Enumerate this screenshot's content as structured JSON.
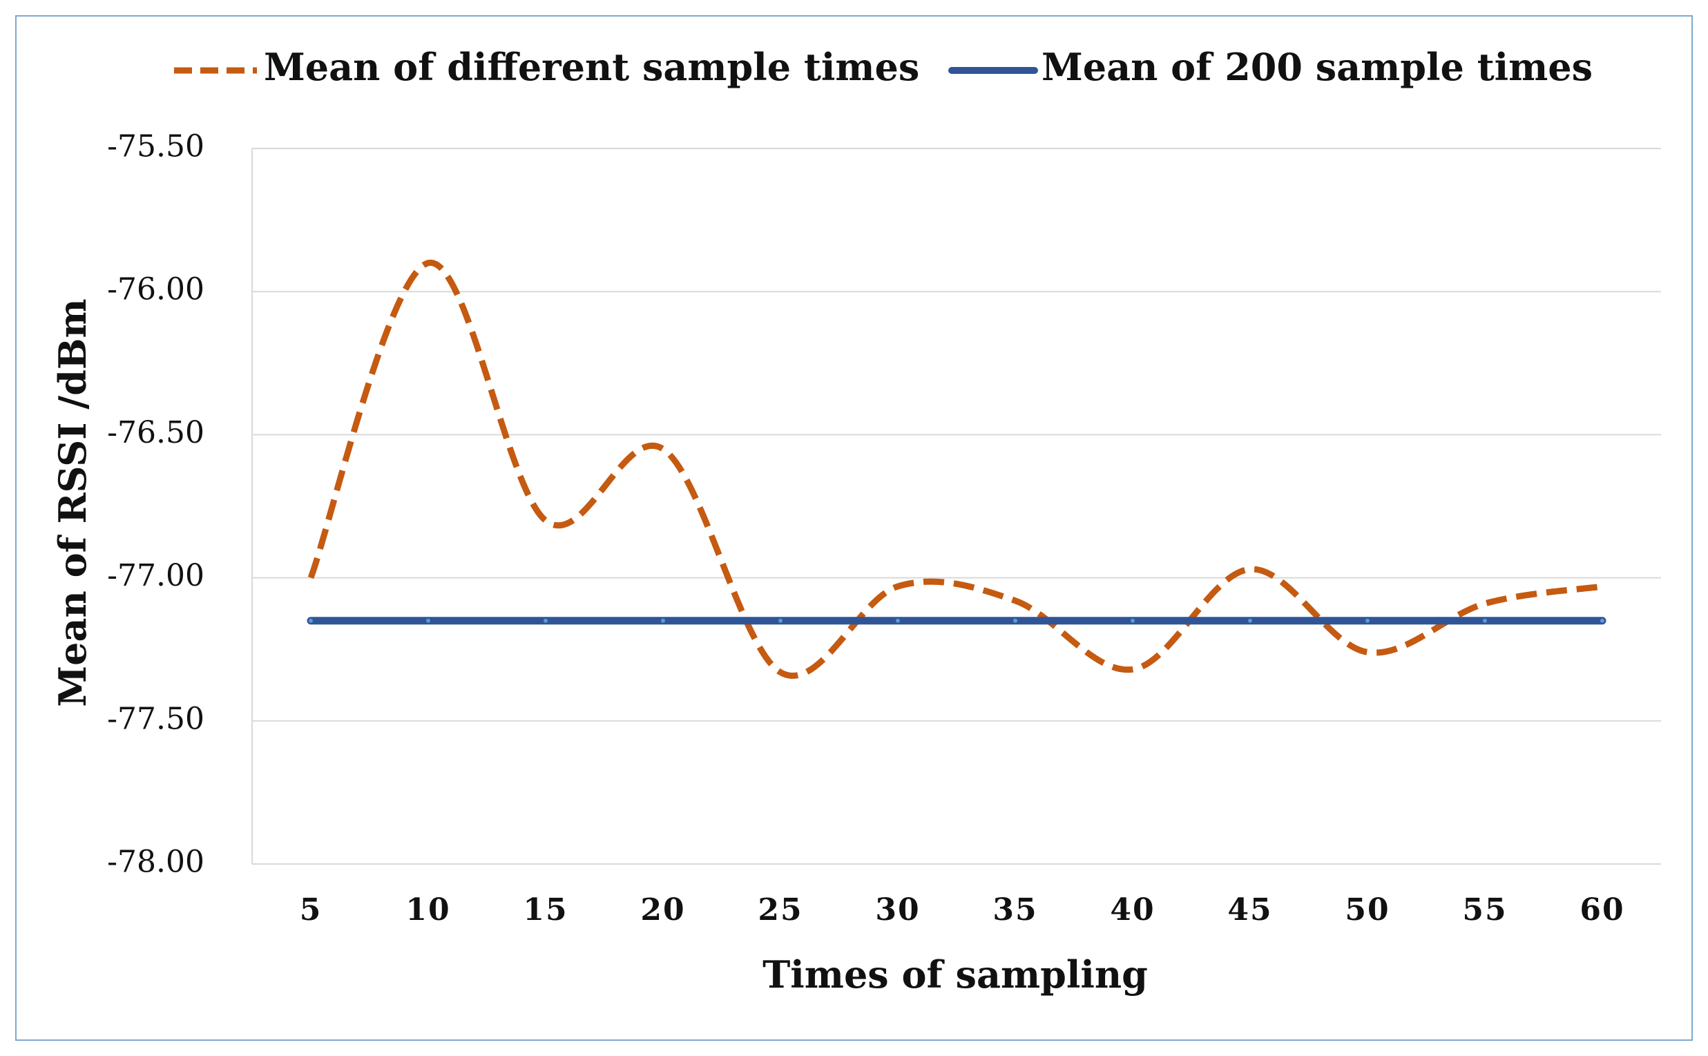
{
  "chart_data": {
    "type": "line",
    "title": "",
    "xlabel": "Times of sampling",
    "ylabel": "Mean of RSSI  /dBm",
    "categories": [
      "5",
      "10",
      "15",
      "20",
      "25",
      "30",
      "35",
      "40",
      "45",
      "50",
      "55",
      "60"
    ],
    "ylim": [
      -78.0,
      -75.5
    ],
    "yticks": [
      "-75.50",
      "-76.00",
      "-76.50",
      "-77.00",
      "-77.50",
      "-78.00"
    ],
    "ytick_values": [
      -75.5,
      -76.0,
      -76.5,
      -77.0,
      -77.5,
      -78.0
    ],
    "grid": true,
    "legend_position": "top",
    "series": [
      {
        "name": "Mean of different sample times",
        "style": "dashed-smooth",
        "color": "#c55a11",
        "values": [
          -77.0,
          -75.9,
          -76.8,
          -76.55,
          -77.33,
          -77.03,
          -77.08,
          -77.32,
          -76.97,
          -77.26,
          -77.09,
          -77.03
        ]
      },
      {
        "name": "Mean of 200 sample times",
        "style": "solid",
        "color": "#2f5597",
        "values": [
          -77.15,
          -77.15,
          -77.15,
          -77.15,
          -77.15,
          -77.15,
          -77.15,
          -77.15,
          -77.15,
          -77.15,
          -77.15,
          -77.15
        ]
      }
    ]
  }
}
